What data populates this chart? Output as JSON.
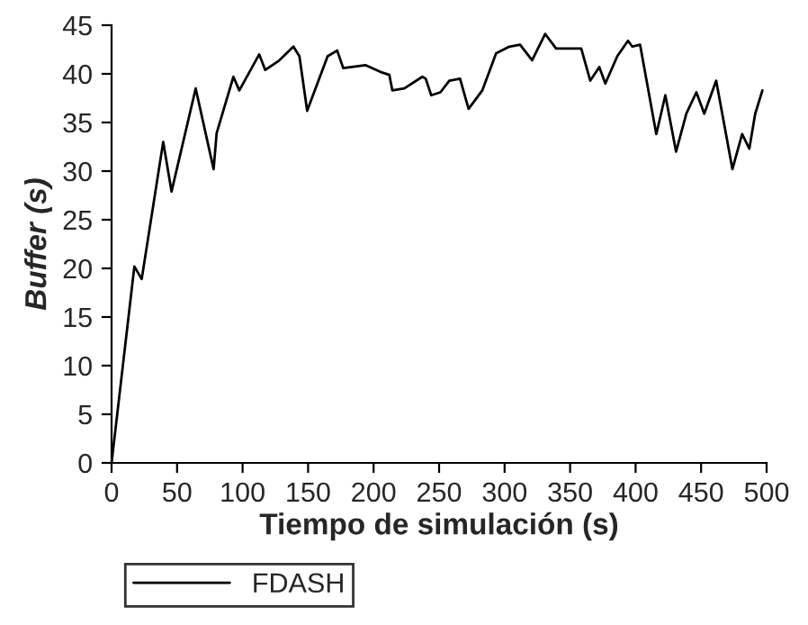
{
  "chart_data": {
    "type": "line",
    "xlabel": "Tiempo de simulación (s)",
    "ylabel": "Buffer (s)",
    "xlim": [
      0,
      500
    ],
    "xticks": [
      0,
      50,
      100,
      150,
      200,
      250,
      300,
      350,
      400,
      450,
      500
    ],
    "ylim": [
      0,
      45
    ],
    "yticks": [
      0,
      5,
      10,
      15,
      20,
      25,
      30,
      35,
      40,
      45
    ],
    "grid": false,
    "legend": "bottom left",
    "marker": "none",
    "line_style": "solid",
    "series": [
      {
        "name": "FDASH",
        "color": "#000000",
        "x": [
          0,
          17.4,
          23,
          39.4,
          45.8,
          64.2,
          77.9,
          80.2,
          93,
          97.5,
          112.7,
          117.3,
          127.3,
          138.8,
          143.4,
          149.3,
          164.9,
          172.2,
          176.8,
          193.7,
          205.2,
          212,
          214.3,
          223.5,
          237.2,
          239.8,
          244,
          251,
          257.8,
          266,
          272.5,
          283,
          293.5,
          303.6,
          311.8,
          321,
          331,
          339.3,
          358.5,
          365.4,
          372.3,
          376.9,
          386,
          394.2,
          397.5,
          403.4,
          415.8,
          422.7,
          430.9,
          438.7,
          446.4,
          452.4,
          461.5,
          473.9,
          481.3,
          486.8,
          491.3,
          496.8
        ],
        "values": [
          0,
          20.2,
          18.9,
          33.0,
          27.9,
          38.5,
          30.2,
          33.9,
          39.7,
          38.3,
          42.0,
          40.4,
          41.3,
          42.8,
          41.8,
          36.2,
          41.8,
          42.4,
          40.6,
          40.9,
          40.2,
          39.9,
          38.3,
          38.5,
          39.7,
          39.5,
          37.8,
          38.1,
          39.3,
          39.5,
          36.4,
          38.3,
          42.1,
          42.8,
          43.0,
          41.4,
          44.1,
          42.6,
          42.6,
          39.3,
          40.7,
          39.0,
          41.8,
          43.4,
          42.8,
          43.0,
          33.8,
          37.8,
          32.0,
          35.9,
          38.1,
          35.9,
          39.3,
          30.2,
          33.8,
          32.3,
          35.9,
          38.3
        ]
      }
    ]
  }
}
